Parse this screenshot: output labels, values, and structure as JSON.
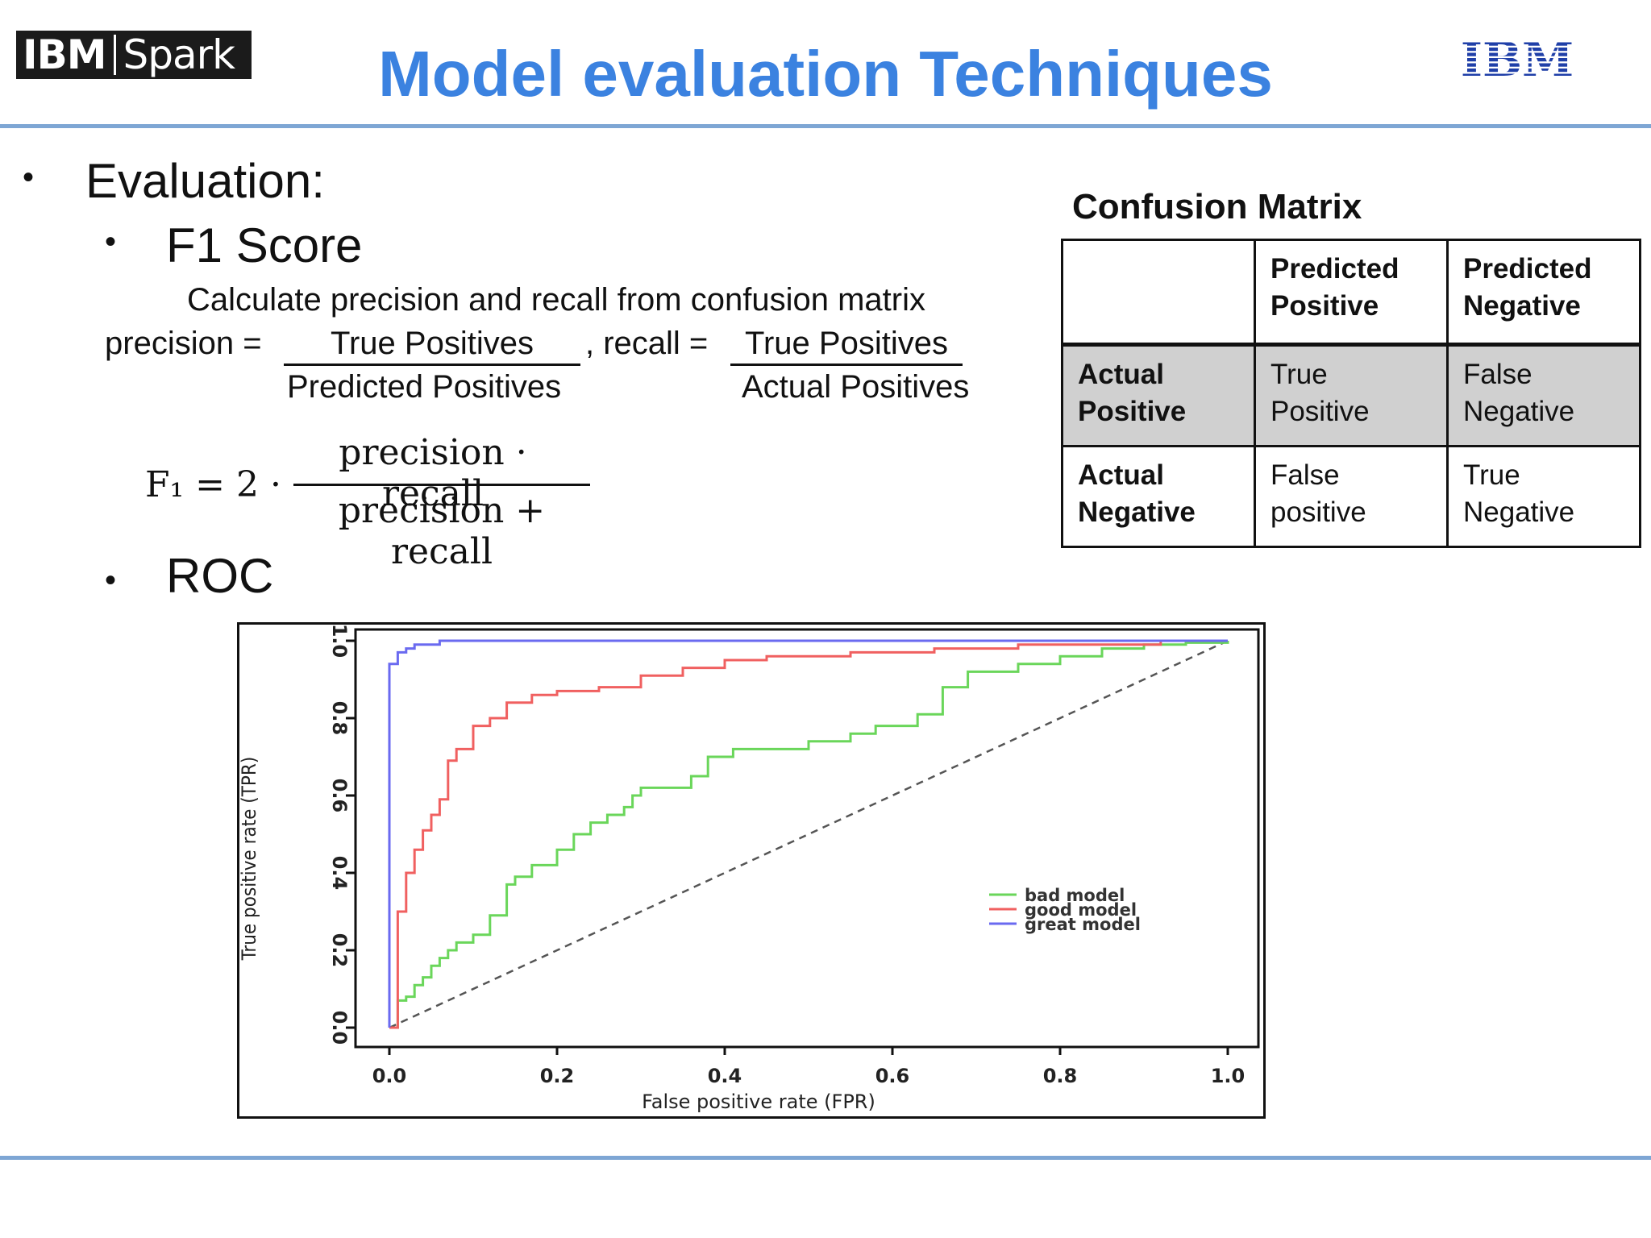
{
  "header": {
    "logo_left_ibm": "IBM",
    "logo_left_spark": "Spark",
    "title": "Model evaluation Techniques",
    "logo_right": "IBM"
  },
  "content": {
    "bullet": "•",
    "evaluation": "Evaluation:",
    "f1_score": "F1 Score",
    "calc_line": "Calculate precision and recall from confusion matrix",
    "precision_label": "precision =",
    "true_positives_1": "True Positives",
    "recall_label": ", recall =",
    "true_positives_2": "True Positives",
    "predicted_positives": "Predicted Positives",
    "actual_positives": "Actual Positives",
    "f1_formula": {
      "lhs": "F₁ = 2 ·",
      "numerator": "precision · recall",
      "denominator": "precision + recall"
    },
    "roc": "ROC"
  },
  "confusion_matrix": {
    "title": "Confusion Matrix",
    "col_headers": [
      "",
      "Predicted Positive",
      "Predicted Negative"
    ],
    "rows": [
      {
        "label": "Actual Positive",
        "cells": [
          "True Positive",
          "False Negative"
        ]
      },
      {
        "label": "Actual Negative",
        "cells": [
          "False positive",
          "True Negative"
        ]
      }
    ]
  },
  "chart_data": {
    "type": "line",
    "xlabel": "False positive rate (FPR)",
    "ylabel": "True positive rate (TPR)",
    "xlim": [
      0,
      1
    ],
    "ylim": [
      0,
      1
    ],
    "xticks": [
      "0.0",
      "0.2",
      "0.4",
      "0.6",
      "0.8",
      "1.0"
    ],
    "yticks": [
      "0.0",
      "0.2",
      "0.4",
      "0.6",
      "0.8",
      "1.0"
    ],
    "legend_position": "center-right",
    "series": [
      {
        "name": "bad model",
        "color": "#6ad65a",
        "x": [
          0,
          0.01,
          0.01,
          0.02,
          0.03,
          0.04,
          0.05,
          0.06,
          0.07,
          0.08,
          0.1,
          0.12,
          0.14,
          0.15,
          0.17,
          0.2,
          0.22,
          0.24,
          0.26,
          0.28,
          0.29,
          0.3,
          0.33,
          0.36,
          0.38,
          0.41,
          0.45,
          0.5,
          0.55,
          0.58,
          0.6,
          0.63,
          0.66,
          0.69,
          0.72,
          0.75,
          0.8,
          0.85,
          0.9,
          0.95,
          1.0
        ],
        "y": [
          0,
          0.02,
          0.07,
          0.08,
          0.11,
          0.13,
          0.16,
          0.18,
          0.2,
          0.22,
          0.24,
          0.29,
          0.37,
          0.39,
          0.42,
          0.46,
          0.5,
          0.53,
          0.55,
          0.57,
          0.6,
          0.62,
          0.62,
          0.65,
          0.7,
          0.72,
          0.72,
          0.74,
          0.76,
          0.78,
          0.78,
          0.81,
          0.88,
          0.92,
          0.92,
          0.94,
          0.96,
          0.98,
          0.99,
          0.995,
          1.0
        ]
      },
      {
        "name": "good model",
        "color": "#f06060",
        "x": [
          0,
          0.01,
          0.01,
          0.02,
          0.03,
          0.04,
          0.05,
          0.06,
          0.07,
          0.08,
          0.1,
          0.12,
          0.14,
          0.17,
          0.2,
          0.25,
          0.3,
          0.35,
          0.4,
          0.45,
          0.55,
          0.65,
          0.75,
          0.85,
          0.92,
          1.0
        ],
        "y": [
          0,
          0.2,
          0.3,
          0.4,
          0.46,
          0.51,
          0.55,
          0.59,
          0.69,
          0.72,
          0.78,
          0.8,
          0.84,
          0.86,
          0.87,
          0.88,
          0.91,
          0.93,
          0.95,
          0.96,
          0.97,
          0.98,
          0.99,
          0.99,
          1.0,
          1.0
        ]
      },
      {
        "name": "great model",
        "color": "#6a6af0",
        "x": [
          0,
          0.0,
          0.01,
          0.02,
          0.03,
          0.06,
          1.0
        ],
        "y": [
          0,
          0.94,
          0.97,
          0.98,
          0.99,
          1.0,
          1.0
        ]
      },
      {
        "name": "",
        "color": "#555555",
        "dashed": true,
        "x": [
          0,
          1
        ],
        "y": [
          0,
          1
        ]
      }
    ]
  }
}
